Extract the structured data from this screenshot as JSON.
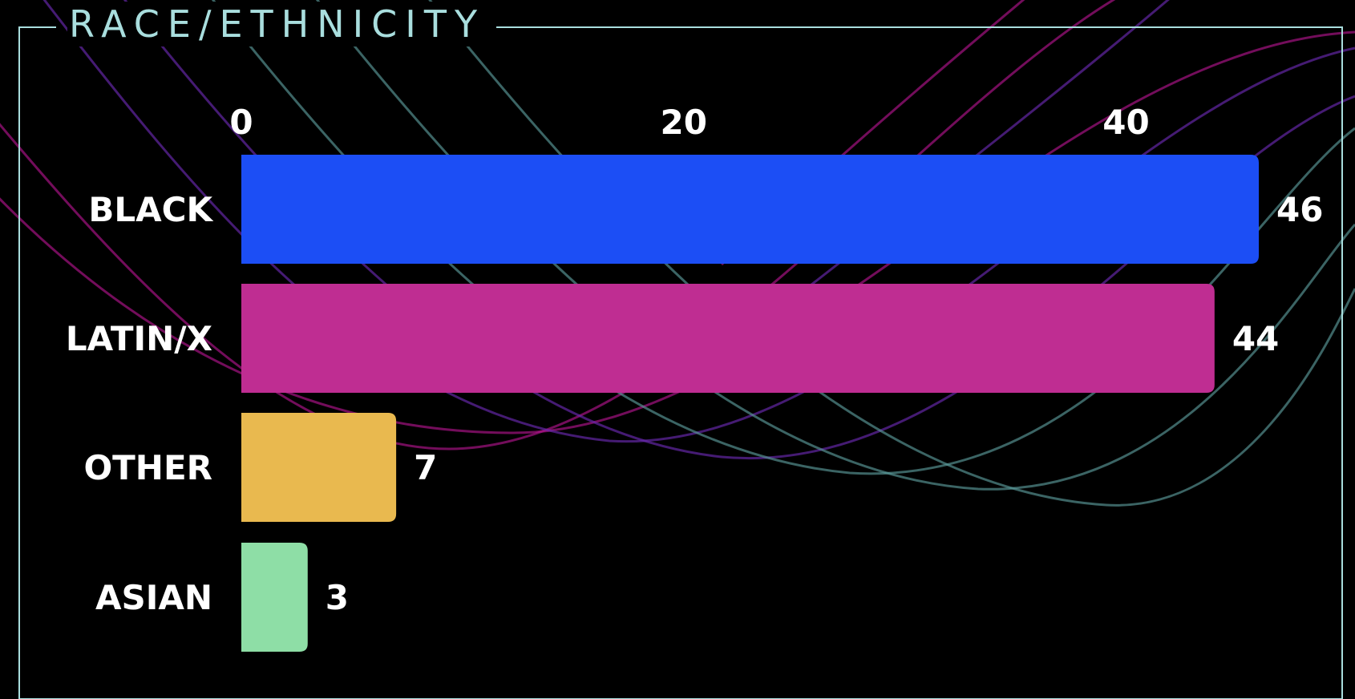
{
  "slide": {
    "title": "RACE/ETHNICITY"
  },
  "colors": {
    "background": "#000000",
    "frame": "#a9dede",
    "text": "#ffffff",
    "wave_magenta": "#b0148c",
    "wave_purple": "#6a2ab0",
    "wave_teal": "#5a9a9a"
  },
  "chart_data": {
    "type": "bar",
    "orientation": "horizontal",
    "categories": [
      "BLACK",
      "LATIN/X",
      "OTHER",
      "ASIAN"
    ],
    "values": [
      46,
      44,
      7,
      3
    ],
    "bar_colors": [
      "#1c4ef5",
      "#bf2d92",
      "#e9b94f",
      "#8edea6"
    ],
    "xlim": [
      0,
      46
    ],
    "xticks": [
      0,
      20,
      40
    ],
    "xtick_labels": [
      "0",
      "20",
      "40"
    ],
    "xaxis_position": "top",
    "data_labels": [
      "46",
      "44",
      "7",
      "3"
    ],
    "grid": false,
    "legend": "none"
  }
}
